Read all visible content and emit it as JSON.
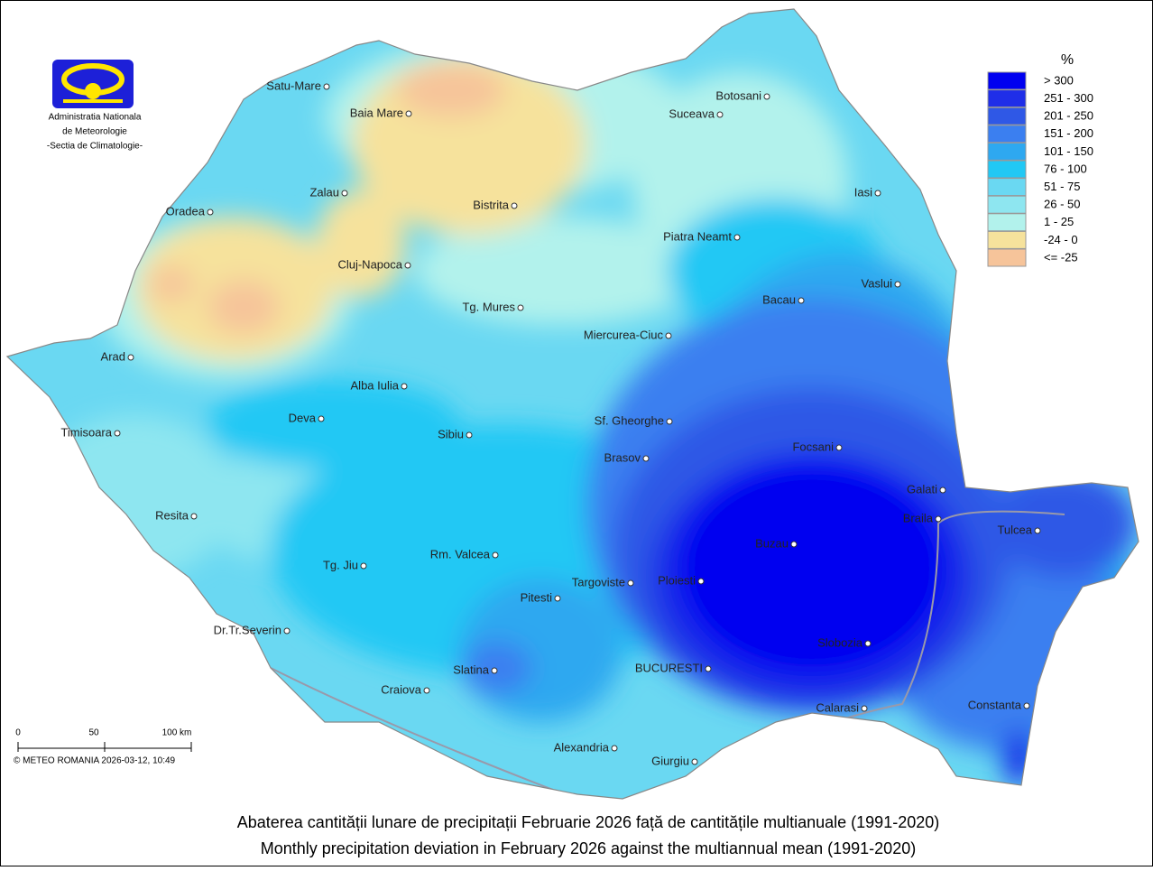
{
  "logo": {
    "lines": [
      "Administratia Nationala",
      "de Meteorologie",
      "-Sectia de Climatologie-"
    ]
  },
  "legend": {
    "title": "%",
    "items": [
      {
        "label": "> 300",
        "color": "#0000f0"
      },
      {
        "label": "251 - 300",
        "color": "#1f2ee8"
      },
      {
        "label": "201 - 250",
        "color": "#2f58e6"
      },
      {
        "label": "151 - 200",
        "color": "#3b7ff0"
      },
      {
        "label": "101 - 150",
        "color": "#2ea8f0"
      },
      {
        "label": "76 - 100",
        "color": "#22c8f4"
      },
      {
        "label": "51 - 75",
        "color": "#6ad8f2"
      },
      {
        "label": "26 - 50",
        "color": "#8ee6f0"
      },
      {
        "label": "1 - 25",
        "color": "#b2f2ec"
      },
      {
        "label": "-24 - 0",
        "color": "#f6e29c"
      },
      {
        "label": "<= -25",
        "color": "#f6c49a"
      }
    ]
  },
  "cities": [
    "Satu-Mare",
    "Baia Mare",
    "Zalau",
    "Oradea",
    "Bistrita",
    "Cluj-Napoca",
    "Tg. Mures",
    "Botosani",
    "Suceava",
    "Iasi",
    "Piatra Neamt",
    "Vaslui",
    "Bacau",
    "Miercurea-Ciuc",
    "Arad",
    "Alba Iulia",
    "Deva",
    "Timisoara",
    "Sibiu",
    "Sf. Gheorghe",
    "Brasov",
    "Focsani",
    "Galati",
    "Braila",
    "Tulcea",
    "Resita",
    "Buzau",
    "Rm. Valcea",
    "Tg. Jiu",
    "Targoviste",
    "Ploiesti",
    "Pitesti",
    "Slobozia",
    "Dr.Tr.Severin",
    "Slatina",
    "BUCURESTI",
    "Craiova",
    "Calarasi",
    "Constanta",
    "Alexandria",
    "Giurgiu"
  ],
  "scale": {
    "labels": [
      "0",
      "50",
      "100 km"
    ]
  },
  "copyright": "© METEO ROMANIA 2026-03-12, 10:49",
  "title": [
    "Abaterea cantității lunare de precipitații  Februarie 2026  față de cantitățile multianuale (1991-2020)",
    "Monthly precipitation deviation in  February 2026  against the multiannual mean (1991-2020)"
  ]
}
